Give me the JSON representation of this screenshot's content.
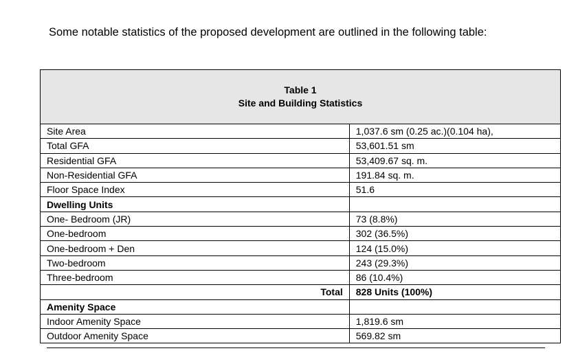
{
  "intro_text": "Some notable statistics of the proposed development are outlined in the following table:",
  "table": {
    "caption_line1": "Table 1",
    "caption_line2": "Site and Building Statistics",
    "site": [
      {
        "label": "Site Area",
        "value": "1,037.6 sm (0.25 ac.)(0.104 ha),"
      },
      {
        "label": "Total GFA",
        "value": "53,601.51 sm"
      },
      {
        "label": "Residential GFA",
        "value": "53,409.67 sq. m."
      },
      {
        "label": "Non-Residential GFA",
        "value": "191.84 sq. m."
      },
      {
        "label": "Floor Space Index",
        "value": "51.6"
      }
    ],
    "dwelling_heading": "Dwelling Units",
    "dwelling": [
      {
        "label": "One- Bedroom (JR)",
        "value": "73 (8.8%)"
      },
      {
        "label": "One-bedroom",
        "value": "302 (36.5%)"
      },
      {
        "label": "One-bedroom + Den",
        "value": "124 (15.0%)"
      },
      {
        "label": "Two-bedroom",
        "value": "243 (29.3%)"
      },
      {
        "label": "Three-bedroom",
        "value": "86 (10.4%)"
      }
    ],
    "total_label": "Total",
    "total_value": "828 Units (100%)",
    "amenity_heading": "Amenity Space",
    "amenity": [
      {
        "label": "Indoor Amenity Space",
        "value": "1,819.6 sm"
      },
      {
        "label": "Outdoor Amenity Space",
        "value": "569.82 sm"
      }
    ]
  }
}
